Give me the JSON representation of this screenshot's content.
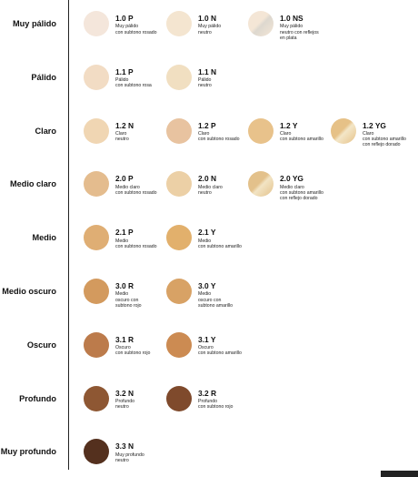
{
  "rows": [
    {
      "label": "Muy pálido",
      "items": [
        {
          "code": "1.0 P",
          "desc": "Muy pálido\ncon subtono rosado",
          "color": "#f4e6db"
        },
        {
          "code": "1.0 N",
          "desc": "Muy pálido\nneutro",
          "color": "#f4e5d0"
        },
        {
          "code": "1.0 NS",
          "desc": "Muy pálido\nneutro con reflejos\nen plata",
          "color": "#f4e6d6",
          "color2": "#ddd8cf"
        }
      ]
    },
    {
      "label": "Pálido",
      "items": [
        {
          "code": "1.1 P",
          "desc": "Pálido\ncon subtono rosa",
          "color": "#f2dcc4"
        },
        {
          "code": "1.1 N",
          "desc": "Pálido\nneutro",
          "color": "#f1dfc1"
        }
      ]
    },
    {
      "label": "Claro",
      "items": [
        {
          "code": "1.2 N",
          "desc": "Claro\nneutro",
          "color": "#f0d6b3"
        },
        {
          "code": "1.2 P",
          "desc": "Claro\ncon subtono rosado",
          "color": "#e8c3a0"
        },
        {
          "code": "1.2 Y",
          "desc": "Claro\ncon subtono amarillo",
          "color": "#e8c28b"
        },
        {
          "code": "1.2 YG",
          "desc": "Claro\ncon subtono amarillo\ncon reflejo dorado",
          "color": "#e6c187",
          "color2": "#f3e6c8"
        }
      ]
    },
    {
      "label": "Medio claro",
      "items": [
        {
          "code": "2.0 P",
          "desc": "Medio claro\ncon subtono rosado",
          "color": "#e4bc8e"
        },
        {
          "code": "2.0 N",
          "desc": "Medio claro\nneutro",
          "color": "#ecd0a6"
        },
        {
          "code": "2.0 YG",
          "desc": "Medio claro\ncon subtono amarillo\ncon reflejo dorado",
          "color": "#e3c18b",
          "color2": "#f2e4c4"
        }
      ]
    },
    {
      "label": "Medio",
      "items": [
        {
          "code": "2.1 P",
          "desc": "Medio\ncon subtono rosado",
          "color": "#dfae74"
        },
        {
          "code": "2.1 Y",
          "desc": "Medio\ncon subtono amarillo",
          "color": "#e2b06c"
        }
      ]
    },
    {
      "label": "Medio oscuro",
      "items": [
        {
          "code": "3.0 R",
          "desc": "Medio\noscuro con\nsubtono rojo",
          "color": "#d39a5e"
        },
        {
          "code": "3.0 Y",
          "desc": "Medio\noscuro con\nsubtono amarillo",
          "color": "#d8a265"
        }
      ]
    },
    {
      "label": "Oscuro",
      "items": [
        {
          "code": "3.1 R",
          "desc": "Oscuro\ncon subtono rojo",
          "color": "#bc7b4b"
        },
        {
          "code": "3.1 Y",
          "desc": "Oscuro\ncon subtono amarillo",
          "color": "#cc8b52"
        }
      ]
    },
    {
      "label": "Profundo",
      "items": [
        {
          "code": "3.2 N",
          "desc": "Profundo\nneutro",
          "color": "#8e5733"
        },
        {
          "code": "3.2 R",
          "desc": "Profundo\ncon subtono rojo",
          "color": "#7f4a2c"
        }
      ]
    },
    {
      "label": "Muy profundo",
      "items": [
        {
          "code": "3.3 N",
          "desc": "Muy profundo\nneutro",
          "color": "#54301e"
        }
      ]
    }
  ],
  "colors": {
    "text": "#111111",
    "divider": "#222222",
    "background": "#ffffff"
  }
}
